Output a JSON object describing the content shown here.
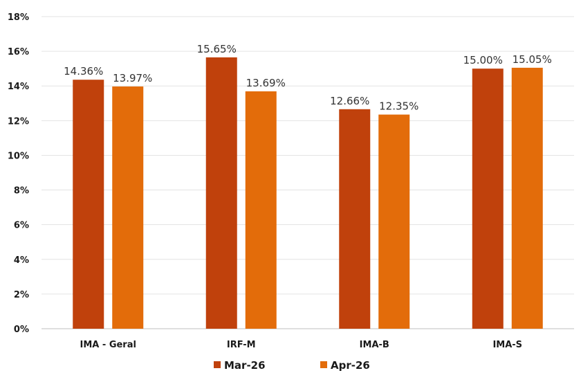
{
  "chart_data": {
    "type": "bar",
    "categories": [
      "IMA - Geral",
      "IRF-M",
      "IMA-B",
      "IMA-S"
    ],
    "series": [
      {
        "name": "Mar-26",
        "values": [
          14.36,
          15.65,
          12.66,
          15.0
        ],
        "labels": [
          "14.36%",
          "15.65%",
          "12.66%",
          "15.00%"
        ],
        "color": "#C0410C"
      },
      {
        "name": "Apr-26",
        "values": [
          13.97,
          13.69,
          12.35,
          15.05
        ],
        "labels": [
          "13.97%",
          "13.69%",
          "12.35%",
          "15.05%"
        ],
        "color": "#E36C0A"
      }
    ],
    "ylim": [
      0,
      18
    ],
    "yticks": [
      0,
      2,
      4,
      6,
      8,
      10,
      12,
      14,
      16,
      18
    ],
    "ytick_labels": [
      "0%",
      "2%",
      "4%",
      "6%",
      "8%",
      "10%",
      "12%",
      "14%",
      "16%",
      "18%"
    ],
    "grid": true,
    "legend_position": "bottom",
    "title": "",
    "xlabel": "",
    "ylabel": ""
  }
}
